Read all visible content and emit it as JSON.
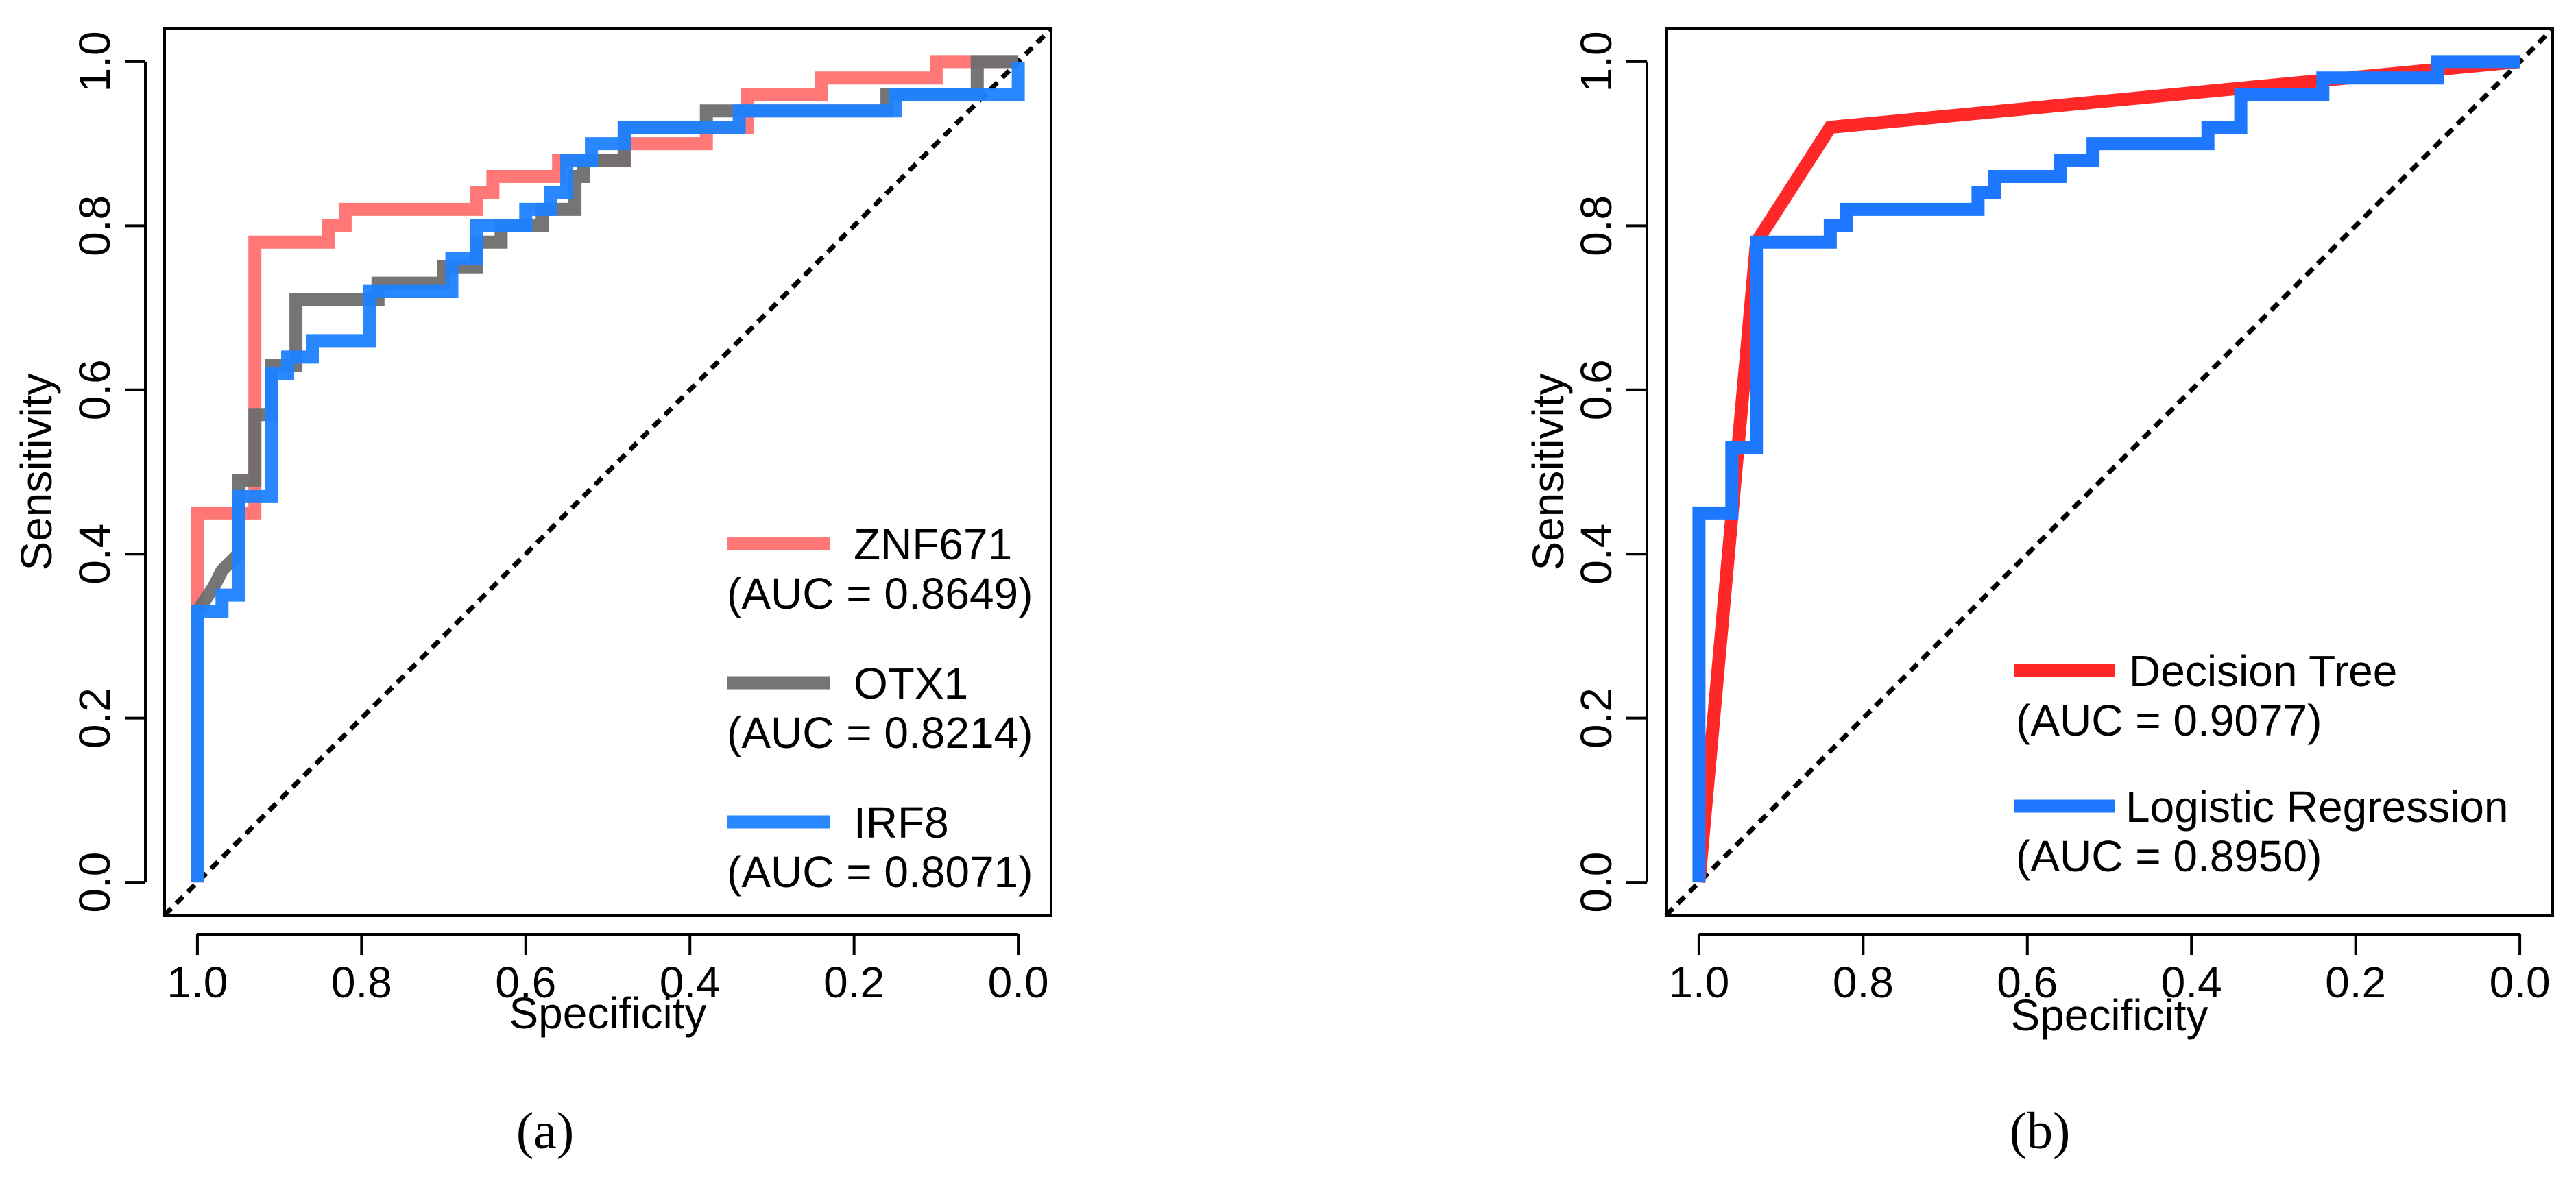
{
  "chart_data": [
    {
      "type": "line",
      "panel_label": "(a)",
      "title": "",
      "xlabel": "Specificity",
      "ylabel": "Sensitivity",
      "xlim": [
        1.0,
        0.0
      ],
      "ylim": [
        0.0,
        1.0
      ],
      "x_ticks": [
        "1.0",
        "0.8",
        "0.6",
        "0.4",
        "0.2",
        "0.0"
      ],
      "y_ticks": [
        "0.0",
        "0.2",
        "0.4",
        "0.6",
        "0.8",
        "1.0"
      ],
      "diagonal_reference": true,
      "legend_position": "bottom-right",
      "series": [
        {
          "name": "ZNF671",
          "auc_label": "(AUC = 0.8649)",
          "color": "#FF5F5F",
          "opacity": 0.85,
          "points": [
            [
              1.0,
              0.0
            ],
            [
              1.0,
              0.34
            ],
            [
              1.0,
              0.45
            ],
            [
              0.93,
              0.45
            ],
            [
              0.93,
              0.78
            ],
            [
              0.84,
              0.78
            ],
            [
              0.84,
              0.8
            ],
            [
              0.82,
              0.8
            ],
            [
              0.82,
              0.82
            ],
            [
              0.66,
              0.82
            ],
            [
              0.66,
              0.84
            ],
            [
              0.64,
              0.84
            ],
            [
              0.64,
              0.86
            ],
            [
              0.56,
              0.86
            ],
            [
              0.56,
              0.88
            ],
            [
              0.48,
              0.88
            ],
            [
              0.48,
              0.9
            ],
            [
              0.38,
              0.9
            ],
            [
              0.38,
              0.92
            ],
            [
              0.33,
              0.92
            ],
            [
              0.33,
              0.96
            ],
            [
              0.24,
              0.96
            ],
            [
              0.24,
              0.98
            ],
            [
              0.1,
              0.98
            ],
            [
              0.1,
              1.0
            ],
            [
              0.0,
              1.0
            ]
          ]
        },
        {
          "name": "OTX1",
          "auc_label": "(AUC = 0.8214)",
          "color": "#6E6E6E",
          "opacity": 0.95,
          "points": [
            [
              1.0,
              0.0
            ],
            [
              1.0,
              0.33
            ],
            [
              0.98,
              0.36
            ],
            [
              0.97,
              0.38
            ],
            [
              0.95,
              0.4
            ],
            [
              0.95,
              0.49
            ],
            [
              0.93,
              0.49
            ],
            [
              0.93,
              0.57
            ],
            [
              0.91,
              0.57
            ],
            [
              0.91,
              0.63
            ],
            [
              0.88,
              0.63
            ],
            [
              0.88,
              0.71
            ],
            [
              0.78,
              0.71
            ],
            [
              0.78,
              0.73
            ],
            [
              0.7,
              0.73
            ],
            [
              0.7,
              0.75
            ],
            [
              0.66,
              0.75
            ],
            [
              0.66,
              0.78
            ],
            [
              0.63,
              0.78
            ],
            [
              0.63,
              0.8
            ],
            [
              0.58,
              0.8
            ],
            [
              0.58,
              0.82
            ],
            [
              0.54,
              0.82
            ],
            [
              0.54,
              0.86
            ],
            [
              0.53,
              0.86
            ],
            [
              0.53,
              0.88
            ],
            [
              0.48,
              0.88
            ],
            [
              0.48,
              0.92
            ],
            [
              0.38,
              0.92
            ],
            [
              0.38,
              0.94
            ],
            [
              0.16,
              0.94
            ],
            [
              0.16,
              0.96
            ],
            [
              0.05,
              0.96
            ],
            [
              0.05,
              1.0
            ],
            [
              0.0,
              1.0
            ]
          ]
        },
        {
          "name": "IRF8",
          "auc_label": "(AUC = 0.8071)",
          "color": "#1E82FF",
          "opacity": 0.95,
          "points": [
            [
              1.0,
              0.0
            ],
            [
              1.0,
              0.33
            ],
            [
              0.97,
              0.33
            ],
            [
              0.97,
              0.35
            ],
            [
              0.95,
              0.35
            ],
            [
              0.95,
              0.47
            ],
            [
              0.91,
              0.47
            ],
            [
              0.91,
              0.62
            ],
            [
              0.89,
              0.62
            ],
            [
              0.89,
              0.64
            ],
            [
              0.86,
              0.64
            ],
            [
              0.86,
              0.66
            ],
            [
              0.79,
              0.66
            ],
            [
              0.79,
              0.72
            ],
            [
              0.69,
              0.72
            ],
            [
              0.69,
              0.76
            ],
            [
              0.66,
              0.76
            ],
            [
              0.66,
              0.8
            ],
            [
              0.6,
              0.8
            ],
            [
              0.6,
              0.82
            ],
            [
              0.57,
              0.82
            ],
            [
              0.57,
              0.84
            ],
            [
              0.55,
              0.84
            ],
            [
              0.55,
              0.88
            ],
            [
              0.52,
              0.88
            ],
            [
              0.52,
              0.9
            ],
            [
              0.48,
              0.9
            ],
            [
              0.48,
              0.92
            ],
            [
              0.34,
              0.92
            ],
            [
              0.34,
              0.94
            ],
            [
              0.15,
              0.94
            ],
            [
              0.15,
              0.96
            ],
            [
              0.0,
              0.96
            ],
            [
              0.0,
              1.0
            ]
          ]
        }
      ]
    },
    {
      "type": "line",
      "panel_label": "(b)",
      "title": "",
      "xlabel": "Specificity",
      "ylabel": "Sensitivity",
      "xlim": [
        1.0,
        0.0
      ],
      "ylim": [
        0.0,
        1.0
      ],
      "x_ticks": [
        "1.0",
        "0.8",
        "0.6",
        "0.4",
        "0.2",
        "0.0"
      ],
      "y_ticks": [
        "0.0",
        "0.2",
        "0.4",
        "0.6",
        "0.8",
        "1.0"
      ],
      "diagonal_reference": true,
      "legend_position": "bottom-right",
      "series": [
        {
          "name": "Decision Tree",
          "auc_label": "(AUC = 0.9077)",
          "color": "#FF2828",
          "opacity": 1.0,
          "points": [
            [
              1.0,
              0.0
            ],
            [
              0.93,
              0.78
            ],
            [
              0.84,
              0.92
            ],
            [
              0.0,
              1.0
            ]
          ]
        },
        {
          "name": "Logistic Regression",
          "auc_label": "(AUC = 0.8950)",
          "color": "#1E78FF",
          "opacity": 1.0,
          "points": [
            [
              1.0,
              0.0
            ],
            [
              1.0,
              0.45
            ],
            [
              0.96,
              0.45
            ],
            [
              0.96,
              0.53
            ],
            [
              0.93,
              0.53
            ],
            [
              0.93,
              0.78
            ],
            [
              0.84,
              0.78
            ],
            [
              0.84,
              0.8
            ],
            [
              0.82,
              0.8
            ],
            [
              0.82,
              0.82
            ],
            [
              0.66,
              0.82
            ],
            [
              0.66,
              0.84
            ],
            [
              0.64,
              0.84
            ],
            [
              0.64,
              0.86
            ],
            [
              0.56,
              0.86
            ],
            [
              0.56,
              0.88
            ],
            [
              0.52,
              0.88
            ],
            [
              0.52,
              0.9
            ],
            [
              0.38,
              0.9
            ],
            [
              0.38,
              0.92
            ],
            [
              0.34,
              0.92
            ],
            [
              0.34,
              0.96
            ],
            [
              0.24,
              0.96
            ],
            [
              0.24,
              0.98
            ],
            [
              0.1,
              0.98
            ],
            [
              0.1,
              1.0
            ],
            [
              0.0,
              1.0
            ]
          ]
        }
      ]
    }
  ]
}
